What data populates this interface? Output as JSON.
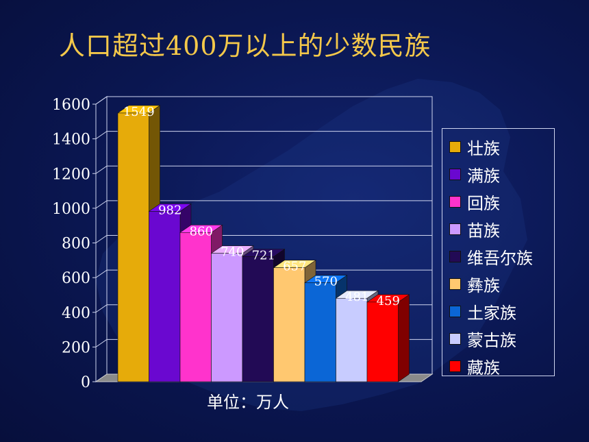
{
  "slide": {
    "title": "人口超过400万以上的少数民族"
  },
  "chart_data": {
    "type": "bar",
    "title": "人口超过400万以上的少数民族",
    "unit_label": "单位：万人",
    "categories": [
      "壮族",
      "满族",
      "回族",
      "苗族",
      "维吾尔族",
      "彝族",
      "土家族",
      "蒙古族",
      "藏族"
    ],
    "values": [
      1549,
      982,
      860,
      740,
      721,
      657,
      570,
      481,
      459
    ],
    "colors": [
      "#e6ab0a",
      "#6a08d0",
      "#ff33cc",
      "#cc99ff",
      "#220a55",
      "#ffc870",
      "#0b66d6",
      "#c8ccff",
      "#ff0000"
    ],
    "yticks": [
      "0",
      "200",
      "400",
      "600",
      "800",
      "1000",
      "1200",
      "1400",
      "1600"
    ],
    "ylim": [
      0,
      1600
    ],
    "grid": true,
    "legend_position": "right",
    "data_labels": true,
    "style": "3d-columns"
  }
}
